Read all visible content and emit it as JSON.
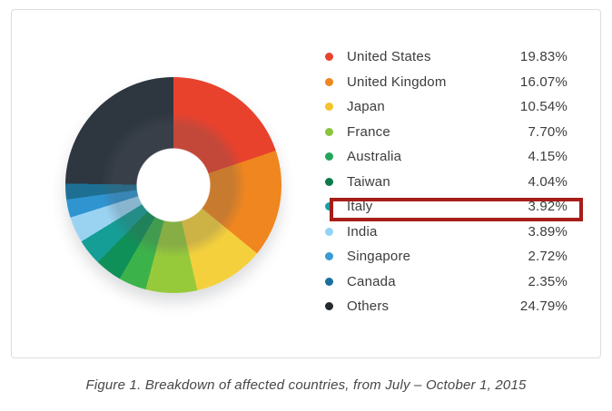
{
  "caption": "Figure 1. Breakdown of affected countries, from July – October 1, 2015",
  "highlight": {
    "country": "Italy",
    "border_color": "#a81d18"
  },
  "chart_data": {
    "type": "pie",
    "subtype": "donut",
    "title": "",
    "categories": [
      "United States",
      "United Kingdom",
      "Japan",
      "France",
      "Australia",
      "Taiwan",
      "Italy",
      "India",
      "Singapore",
      "Canada",
      "Others"
    ],
    "values": [
      19.83,
      16.07,
      10.54,
      7.7,
      4.15,
      4.04,
      3.92,
      3.89,
      2.72,
      2.35,
      24.79
    ],
    "unit": "%",
    "colors": [
      "#e8422d",
      "#ef861f",
      "#f5d03d",
      "#97ca3b",
      "#3cb24a",
      "#0f9058",
      "#149e96",
      "#9ad3f2",
      "#3094d1",
      "#1d7093",
      "#2e3640"
    ],
    "start_angle_deg": 0,
    "direction": "clockwise",
    "legend_position": "right",
    "donut_hole_ratio": 0.34,
    "highlighted_category": "Italy"
  },
  "legend": {
    "items": [
      {
        "label": "United States",
        "value": "19.83%",
        "color": "#e8422d"
      },
      {
        "label": "United Kingdom",
        "value": "16.07%",
        "color": "#ef861f"
      },
      {
        "label": "Japan",
        "value": "10.54%",
        "color": "#f5c32b"
      },
      {
        "label": "France",
        "value": "7.70%",
        "color": "#8ac43c"
      },
      {
        "label": "Australia",
        "value": "4.15%",
        "color": "#23a55b"
      },
      {
        "label": "Taiwan",
        "value": "4.04%",
        "color": "#0c7a49"
      },
      {
        "label": "Italy",
        "value": "3.92%",
        "color": "#17a0a4"
      },
      {
        "label": "India",
        "value": "3.89%",
        "color": "#93d4f4"
      },
      {
        "label": "Singapore",
        "value": "2.72%",
        "color": "#3b9ad6"
      },
      {
        "label": "Canada",
        "value": "2.35%",
        "color": "#1c6e9c"
      },
      {
        "label": "Others",
        "value": "24.79%",
        "color": "#24292e"
      }
    ]
  }
}
